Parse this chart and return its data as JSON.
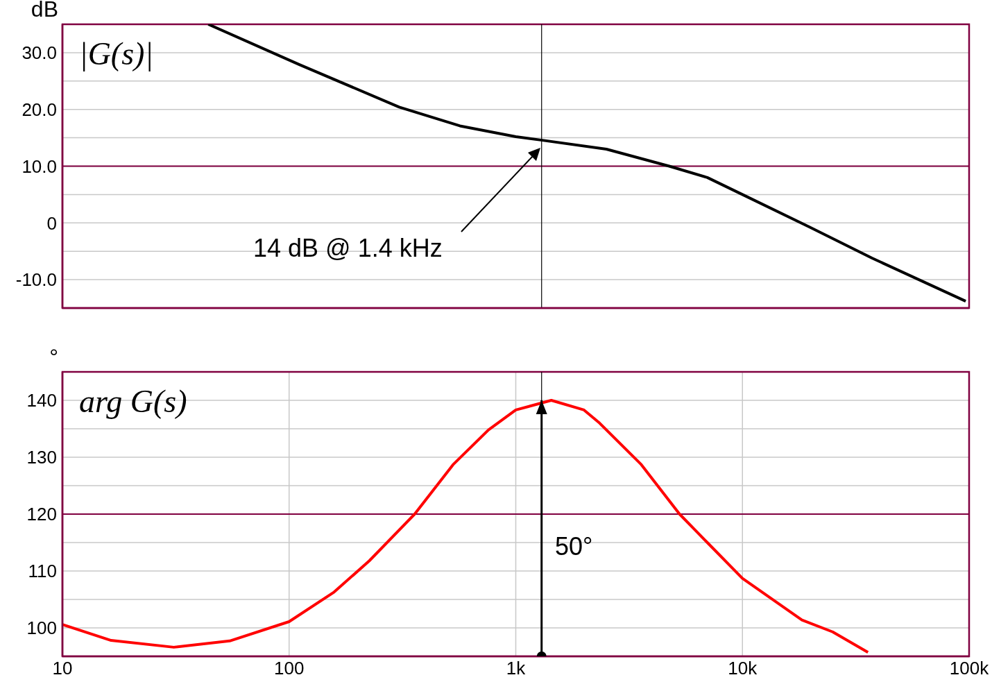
{
  "chart_data": [
    {
      "type": "line",
      "ylabel": "dB",
      "annotations": [
        "|G(s)|",
        "14 dB @ 1.4 kHz"
      ],
      "x": [
        44,
        111,
        306,
        567,
        1000,
        1292,
        2512,
        4753,
        7000,
        10000,
        19700,
        37300,
        96600
      ],
      "series": [
        {
          "color": "#000000",
          "values": [
            35,
            27.9,
            20.4,
            17.1,
            15.2,
            14.6,
            13,
            10,
            8,
            5,
            -0.7,
            -6.2,
            -13.8
          ]
        }
      ],
      "xlim": [
        10,
        100000
      ],
      "xticks": [
        10,
        100,
        1000,
        10000,
        100000
      ],
      "ylim": [
        -15,
        35
      ],
      "yticks": [
        {
          "value": 30,
          "label": "30.0"
        },
        {
          "value": 25,
          "label": null
        },
        {
          "value": 20,
          "label": "20.0"
        },
        {
          "value": 15,
          "label": null
        },
        {
          "value": 10,
          "label": "10.0"
        },
        {
          "value": 5,
          "label": null
        },
        0,
        {
          "value": -5,
          "label": null
        },
        {
          "value": -10,
          "label": "-10.0"
        }
      ],
      "log": "x",
      "grid": true,
      "tick_labels": "y",
      "ref_lines": [
        {
          "axis": "y",
          "value": 10,
          "color": "#800040"
        },
        {
          "axis": "x",
          "value": 1300,
          "color": "#000000"
        }
      ]
    },
    {
      "type": "line",
      "ylabel": "°",
      "annotations": [
        "arg G(s)",
        "50°"
      ],
      "x": [
        10,
        16.4,
        31,
        54.7,
        100,
        158,
        226,
        358,
        529,
        758,
        1000,
        1435,
        2000,
        2343,
        3580,
        5280,
        7000,
        10000,
        18300,
        25000,
        35800
      ],
      "series": [
        {
          "color": "#ff0000",
          "values": [
            100.6,
            97.8,
            96.6,
            97.7,
            101.1,
            106.3,
            111.8,
            120,
            128.7,
            134.8,
            138.3,
            140,
            138.3,
            136,
            128.7,
            120,
            115,
            108.7,
            101.4,
            99.3,
            95.7
          ]
        },
        {
          "color": "#000000",
          "x": [
            1300,
            1300
          ],
          "values": [
            95,
            140
          ]
        }
      ],
      "xlim": [
        10,
        100000
      ],
      "xticks": [
        10,
        100,
        {
          "value": 1000,
          "label": "1k"
        },
        {
          "value": 10000,
          "label": "10k"
        },
        {
          "value": 100000,
          "label": "100k"
        }
      ],
      "ylim": [
        95,
        145
      ],
      "yticks": [
        140,
        {
          "value": 135,
          "label": null
        },
        130,
        {
          "value": 125,
          "label": null
        },
        120,
        {
          "value": 115,
          "label": null
        },
        110,
        {
          "value": 105,
          "label": null
        },
        100
      ],
      "log": "x",
      "grid": true,
      "ref_lines": [
        {
          "axis": "y",
          "value": 120,
          "color": "#800040"
        },
        {
          "axis": "x",
          "value": 1300,
          "color": "#000000"
        }
      ]
    }
  ]
}
